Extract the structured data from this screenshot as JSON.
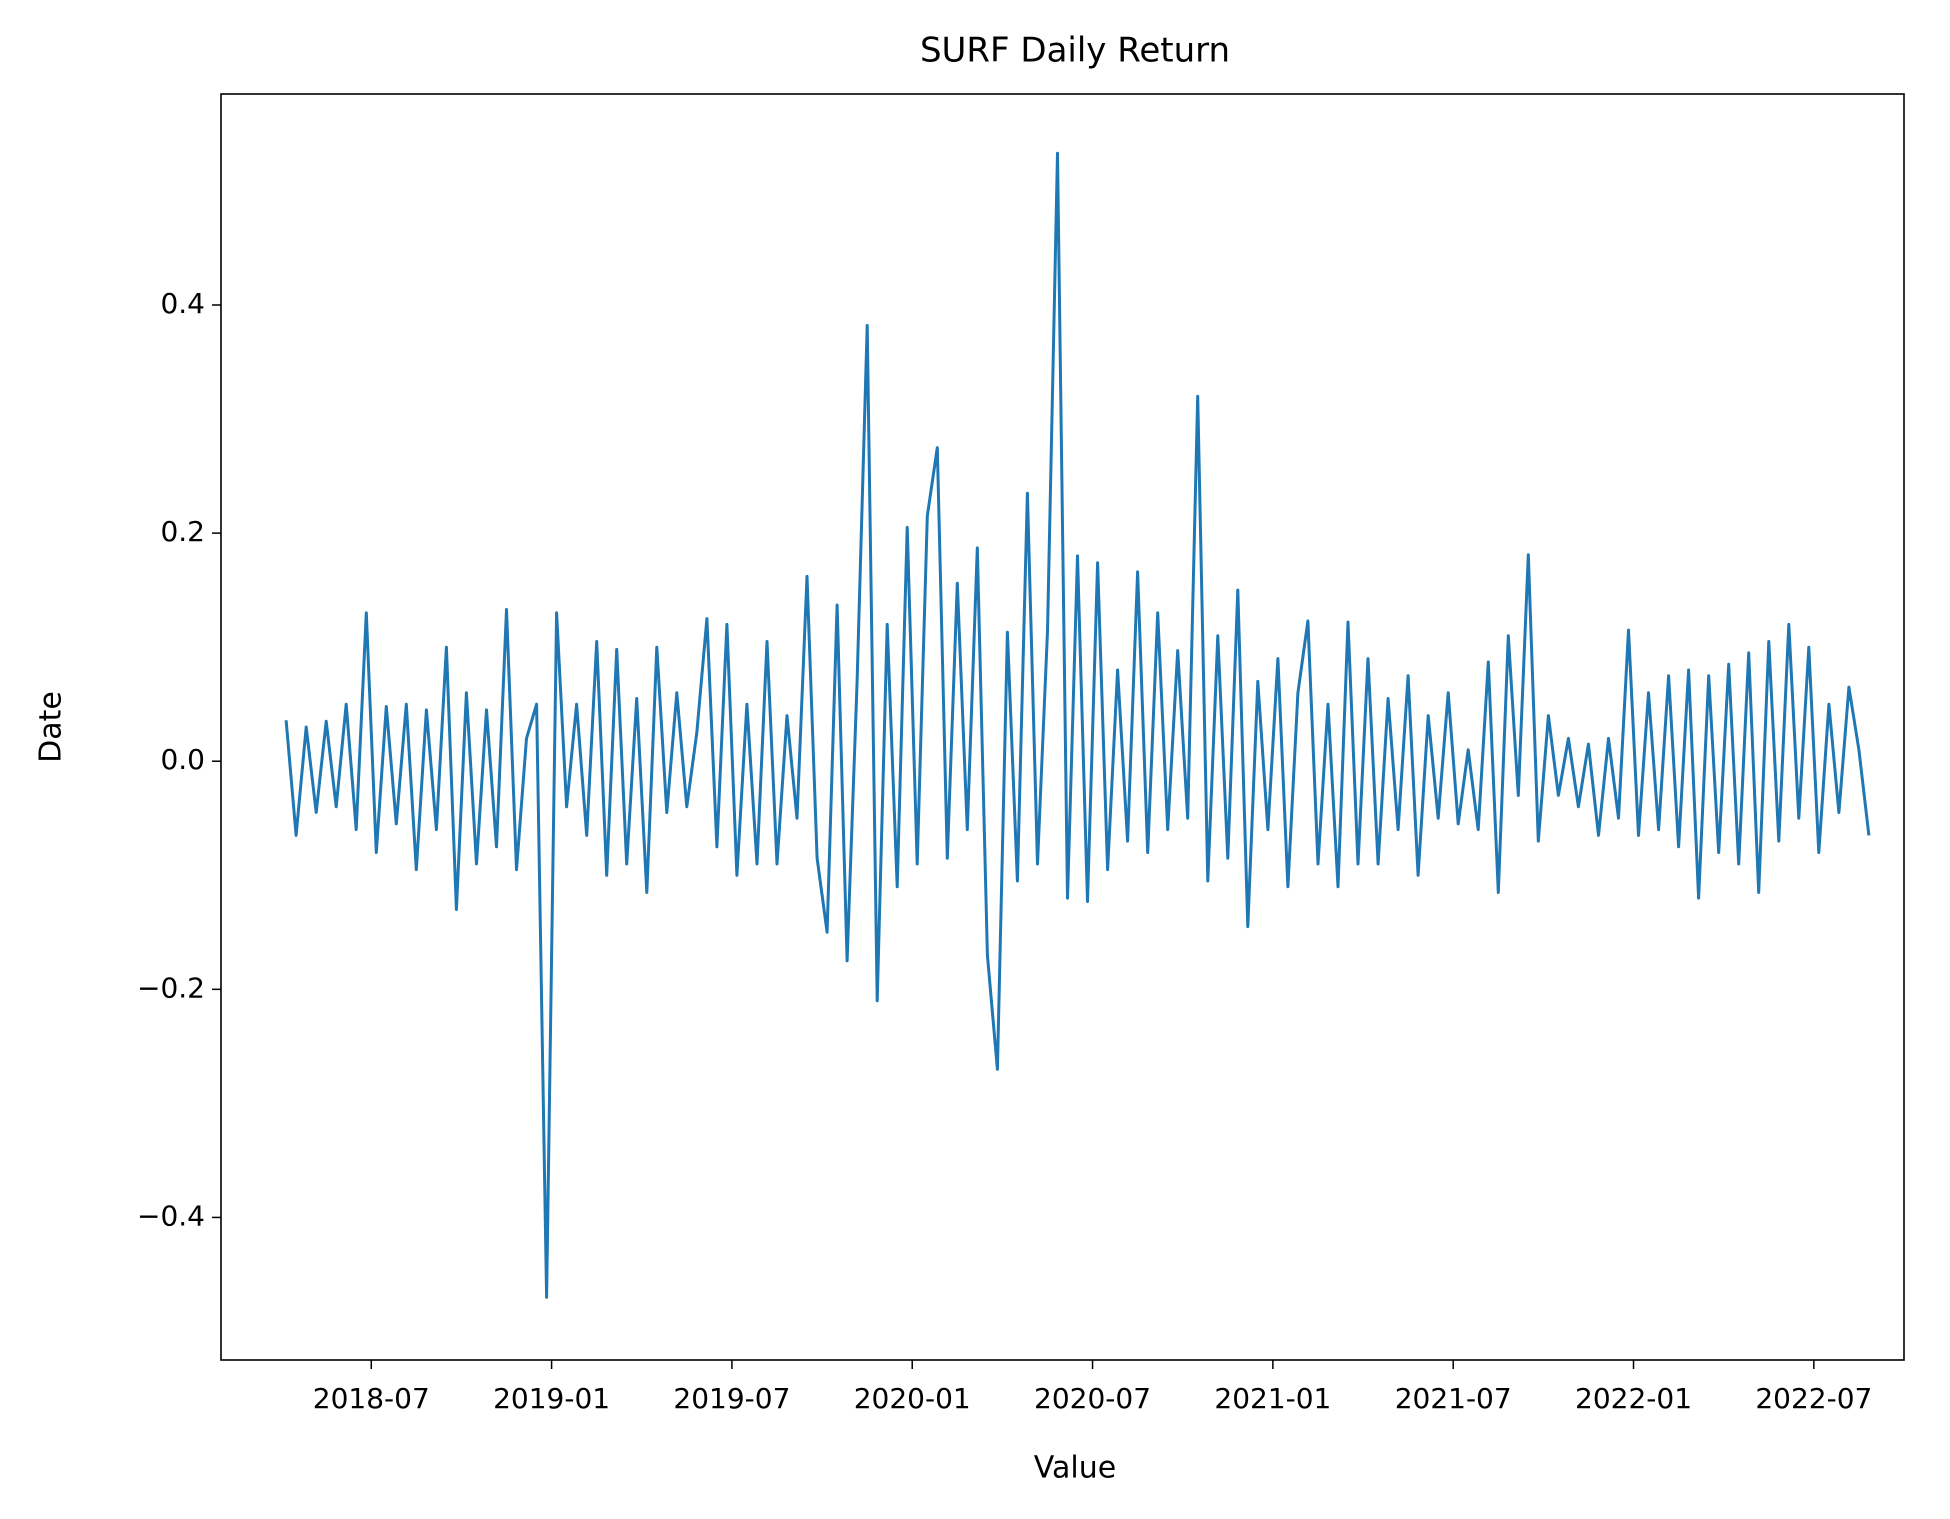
{
  "chart_data": {
    "type": "line",
    "title": "SURF Daily Return",
    "xlabel": "Value",
    "ylabel": "Date",
    "color": "#1f77b4",
    "x": [
      "2018-04",
      "2018-04",
      "2018-04",
      "2018-05",
      "2018-05",
      "2018-05",
      "2018-06",
      "2018-06",
      "2018-06",
      "2018-07",
      "2018-07",
      "2018-07",
      "2018-08",
      "2018-08",
      "2018-08",
      "2018-09",
      "2018-09",
      "2018-09",
      "2018-10",
      "2018-10",
      "2018-10",
      "2018-11",
      "2018-11",
      "2018-11",
      "2018-12",
      "2018-12",
      "2018-12",
      "2019-01",
      "2019-01",
      "2019-01",
      "2019-02",
      "2019-02",
      "2019-02",
      "2019-03",
      "2019-03",
      "2019-03",
      "2019-04",
      "2019-04",
      "2019-04",
      "2019-05",
      "2019-05",
      "2019-05",
      "2019-06",
      "2019-06",
      "2019-06",
      "2019-07",
      "2019-07",
      "2019-07",
      "2019-08",
      "2019-08",
      "2019-08",
      "2019-09",
      "2019-09",
      "2019-09",
      "2019-10",
      "2019-10",
      "2019-10",
      "2019-11",
      "2019-11",
      "2019-11",
      "2019-12",
      "2019-12",
      "2019-12",
      "2020-01",
      "2020-01",
      "2020-01",
      "2020-02",
      "2020-02",
      "2020-02",
      "2020-03",
      "2020-03",
      "2020-03",
      "2020-04",
      "2020-04",
      "2020-04",
      "2020-05",
      "2020-05",
      "2020-05",
      "2020-06",
      "2020-06",
      "2020-06",
      "2020-07",
      "2020-07",
      "2020-07",
      "2020-08",
      "2020-08",
      "2020-08",
      "2020-09",
      "2020-09",
      "2020-09",
      "2020-10",
      "2020-10",
      "2020-10",
      "2020-11",
      "2020-11",
      "2020-11",
      "2020-12",
      "2020-12",
      "2020-12",
      "2021-01",
      "2021-01",
      "2021-01",
      "2021-02",
      "2021-02",
      "2021-02",
      "2021-03",
      "2021-03",
      "2021-03",
      "2021-04",
      "2021-04",
      "2021-04",
      "2021-05",
      "2021-05",
      "2021-05",
      "2021-06",
      "2021-06",
      "2021-06",
      "2021-07",
      "2021-07",
      "2021-07",
      "2021-08",
      "2021-08",
      "2021-08",
      "2021-09",
      "2021-09",
      "2021-09",
      "2021-10",
      "2021-10",
      "2021-10",
      "2021-11",
      "2021-11",
      "2021-11",
      "2021-12",
      "2021-12",
      "2021-12",
      "2022-01",
      "2022-01",
      "2022-01",
      "2022-02",
      "2022-02",
      "2022-02",
      "2022-03",
      "2022-03",
      "2022-03",
      "2022-04",
      "2022-04",
      "2022-04",
      "2022-05",
      "2022-05",
      "2022-05",
      "2022-06",
      "2022-06",
      "2022-06",
      "2022-07",
      "2022-07",
      "2022-07",
      "2022-08",
      "2022-08",
      "2022-08"
    ],
    "values": [
      0.036,
      -0.065,
      0.03,
      -0.045,
      0.035,
      -0.04,
      0.05,
      -0.06,
      0.13,
      -0.08,
      0.048,
      -0.055,
      0.05,
      -0.095,
      0.045,
      -0.06,
      0.1,
      -0.13,
      0.06,
      -0.09,
      0.045,
      -0.075,
      0.133,
      -0.095,
      0.02,
      0.05,
      -0.47,
      0.13,
      -0.04,
      0.05,
      -0.065,
      0.105,
      -0.1,
      0.098,
      -0.09,
      0.055,
      -0.115,
      0.1,
      -0.045,
      0.06,
      -0.04,
      0.025,
      0.125,
      -0.075,
      0.12,
      -0.1,
      0.05,
      -0.09,
      0.105,
      -0.09,
      0.04,
      -0.05,
      0.162,
      -0.085,
      -0.15,
      0.137,
      -0.175,
      0.07,
      0.382,
      -0.21,
      0.12,
      -0.11,
      0.205,
      -0.09,
      0.215,
      0.275,
      -0.085,
      0.156,
      -0.06,
      0.187,
      -0.17,
      -0.27,
      0.113,
      -0.105,
      0.235,
      -0.09,
      0.114,
      0.533,
      -0.12,
      0.18,
      -0.123,
      0.174,
      -0.095,
      0.08,
      -0.07,
      0.166,
      -0.08,
      0.13,
      -0.06,
      0.097,
      -0.05,
      0.32,
      -0.105,
      0.11,
      -0.085,
      0.15,
      -0.145,
      0.07,
      -0.06,
      0.09,
      -0.11,
      0.06,
      0.123,
      -0.09,
      0.05,
      -0.11,
      0.122,
      -0.09,
      0.09,
      -0.09,
      0.055,
      -0.06,
      0.075,
      -0.1,
      0.04,
      -0.05,
      0.06,
      -0.055,
      0.01,
      -0.06,
      0.087,
      -0.115,
      0.11,
      -0.03,
      0.181,
      -0.07,
      0.04,
      -0.03,
      0.02,
      -0.04,
      0.015,
      -0.065,
      0.02,
      -0.05,
      0.115,
      -0.065,
      0.06,
      -0.06,
      0.075,
      -0.075,
      0.08,
      -0.12,
      0.075,
      -0.08,
      0.085,
      -0.09,
      0.095,
      -0.115,
      0.105,
      -0.07,
      0.12,
      -0.05,
      0.1,
      -0.08,
      0.05,
      -0.045,
      0.065,
      0.01,
      -0.065
    ],
    "xlim": [
      "2018-02",
      "2022-10"
    ],
    "xticks": [
      "2018-07",
      "2019-01",
      "2019-07",
      "2020-01",
      "2020-07",
      "2021-01",
      "2021-07",
      "2022-01",
      "2022-07"
    ],
    "ylim": [
      -0.525,
      0.585
    ],
    "yticks": [
      {
        "value": -0.4,
        "label": "−0.4"
      },
      {
        "value": -0.2,
        "label": "−0.2"
      },
      {
        "value": 0,
        "label": "0.0"
      },
      0.2,
      0.4
    ]
  }
}
